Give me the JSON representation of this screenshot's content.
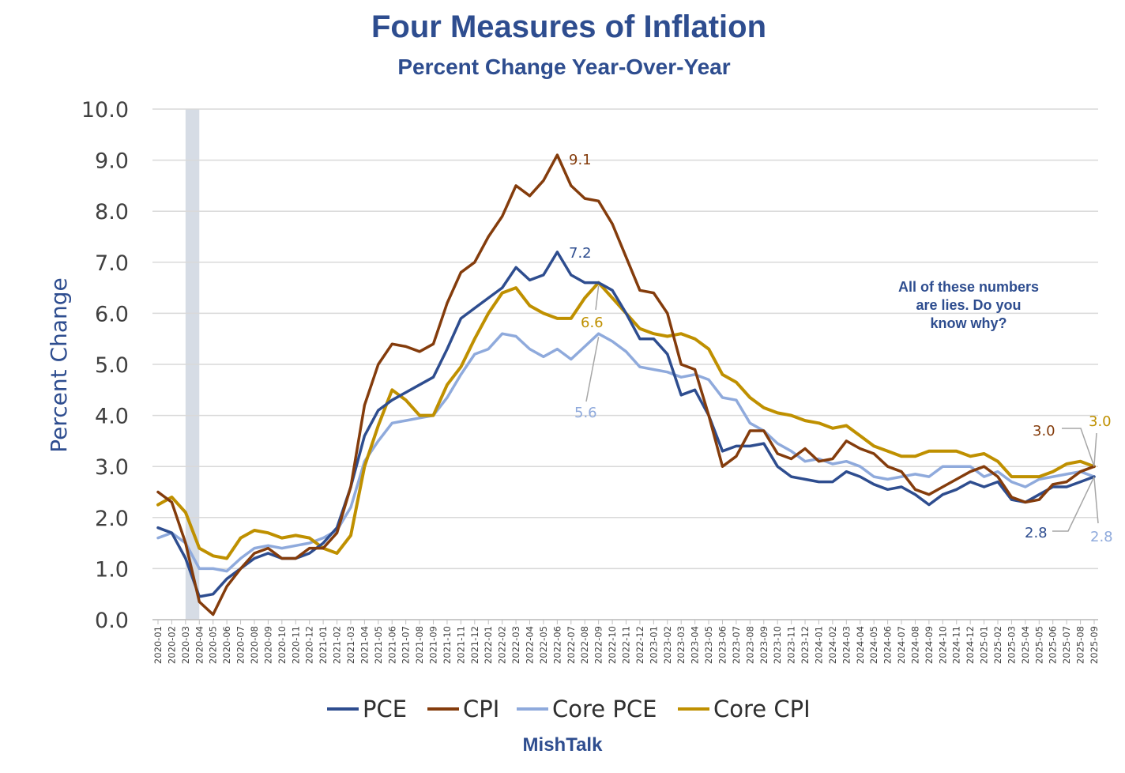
{
  "chart_data": {
    "type": "line",
    "title": "Four Measures of Inflation",
    "subtitle": "Percent Change Year-Over-Year",
    "ylabel": "Percent Change",
    "xlabel": "",
    "ylim": [
      0,
      10
    ],
    "yticks": [
      "0.0",
      "1.0",
      "2.0",
      "3.0",
      "4.0",
      "5.0",
      "6.0",
      "7.0",
      "8.0",
      "9.0",
      "10.0"
    ],
    "grid": "horizontal",
    "legend_position": "bottom",
    "recession_shading": [
      "2020-03",
      "2020-04"
    ],
    "x": [
      "2020-01",
      "2020-02",
      "2020-03",
      "2020-04",
      "2020-05",
      "2020-06",
      "2020-07",
      "2020-08",
      "2020-09",
      "2020-10",
      "2020-11",
      "2020-12",
      "2021-01",
      "2021-02",
      "2021-03",
      "2021-04",
      "2021-05",
      "2021-06",
      "2021-07",
      "2021-08",
      "2021-09",
      "2021-10",
      "2021-11",
      "2021-12",
      "2022-01",
      "2022-02",
      "2022-03",
      "2022-04",
      "2022-05",
      "2022-06",
      "2022-07",
      "2022-08",
      "2022-09",
      "2022-10",
      "2022-11",
      "2022-12",
      "2023-01",
      "2023-02",
      "2023-03",
      "2023-04",
      "2023-05",
      "2023-06",
      "2023-07",
      "2023-08",
      "2023-09",
      "2023-10",
      "2023-11",
      "2023-12",
      "2024-01",
      "2024-02",
      "2024-03",
      "2024-04",
      "2024-05",
      "2024-06",
      "2024-07",
      "2024-08",
      "2024-09",
      "2024-10",
      "2024-11",
      "2024-12",
      "2025-01",
      "2025-02",
      "2025-03",
      "2025-04",
      "2025-05",
      "2025-06",
      "2025-07",
      "2025-08",
      "2025-09"
    ],
    "series": [
      {
        "name": "PCE",
        "color": "#2e4d8f",
        "values": [
          1.8,
          1.7,
          1.2,
          0.45,
          0.5,
          0.8,
          1.0,
          1.2,
          1.3,
          1.2,
          1.2,
          1.3,
          1.5,
          1.8,
          2.6,
          3.6,
          4.1,
          4.3,
          4.45,
          4.6,
          4.75,
          5.3,
          5.9,
          6.1,
          6.3,
          6.5,
          6.9,
          6.65,
          6.75,
          7.2,
          6.75,
          6.6,
          6.6,
          6.45,
          6.0,
          5.5,
          5.5,
          5.2,
          4.4,
          4.5,
          4.0,
          3.3,
          3.4,
          3.4,
          3.45,
          3.0,
          2.8,
          2.75,
          2.7,
          2.7,
          2.9,
          2.8,
          2.65,
          2.55,
          2.6,
          2.45,
          2.25,
          2.45,
          2.55,
          2.7,
          2.6,
          2.7,
          2.35,
          2.3,
          2.45,
          2.6,
          2.6,
          2.7,
          2.8
        ]
      },
      {
        "name": "CPI",
        "color": "#843c0c",
        "values": [
          2.5,
          2.3,
          1.5,
          0.35,
          0.1,
          0.65,
          1.0,
          1.3,
          1.4,
          1.2,
          1.2,
          1.4,
          1.4,
          1.7,
          2.6,
          4.2,
          5.0,
          5.4,
          5.35,
          5.25,
          5.4,
          6.2,
          6.8,
          7.0,
          7.5,
          7.9,
          8.5,
          8.3,
          8.6,
          9.1,
          8.5,
          8.25,
          8.2,
          7.75,
          7.1,
          6.45,
          6.4,
          6.0,
          5.0,
          4.9,
          4.0,
          3.0,
          3.2,
          3.7,
          3.7,
          3.25,
          3.15,
          3.35,
          3.1,
          3.15,
          3.5,
          3.35,
          3.25,
          3.0,
          2.9,
          2.55,
          2.45,
          2.6,
          2.75,
          2.9,
          3.0,
          2.8,
          2.4,
          2.3,
          2.35,
          2.65,
          2.7,
          2.9,
          3.0
        ]
      },
      {
        "name": "Core PCE",
        "color": "#8faadc",
        "values": [
          1.6,
          1.7,
          1.5,
          1.0,
          1.0,
          0.95,
          1.2,
          1.4,
          1.45,
          1.4,
          1.45,
          1.5,
          1.6,
          1.75,
          2.2,
          3.1,
          3.5,
          3.85,
          3.9,
          3.95,
          4.0,
          4.35,
          4.8,
          5.2,
          5.3,
          5.6,
          5.55,
          5.3,
          5.15,
          5.3,
          5.1,
          5.35,
          5.6,
          5.45,
          5.25,
          4.95,
          4.9,
          4.85,
          4.75,
          4.8,
          4.7,
          4.35,
          4.3,
          3.85,
          3.7,
          3.45,
          3.3,
          3.1,
          3.15,
          3.05,
          3.1,
          3.0,
          2.8,
          2.75,
          2.8,
          2.85,
          2.8,
          3.0,
          3.0,
          3.0,
          2.8,
          2.9,
          2.7,
          2.6,
          2.75,
          2.8,
          2.85,
          2.9,
          2.8
        ]
      },
      {
        "name": "Core CPI",
        "color": "#bf9000",
        "values": [
          2.25,
          2.4,
          2.1,
          1.4,
          1.25,
          1.2,
          1.6,
          1.75,
          1.7,
          1.6,
          1.65,
          1.6,
          1.4,
          1.3,
          1.65,
          3.0,
          3.8,
          4.5,
          4.3,
          4.0,
          4.0,
          4.6,
          4.95,
          5.5,
          6.0,
          6.4,
          6.5,
          6.15,
          6.0,
          5.9,
          5.9,
          6.3,
          6.6,
          6.3,
          6.0,
          5.7,
          5.6,
          5.55,
          5.6,
          5.5,
          5.3,
          4.8,
          4.65,
          4.35,
          4.15,
          4.05,
          4.0,
          3.9,
          3.85,
          3.75,
          3.8,
          3.6,
          3.4,
          3.3,
          3.2,
          3.2,
          3.3,
          3.3,
          3.3,
          3.2,
          3.25,
          3.1,
          2.8,
          2.8,
          2.8,
          2.9,
          3.05,
          3.1,
          3.0
        ]
      }
    ],
    "annotations": [
      "9.1",
      "7.2",
      "6.6",
      "5.6",
      "3.0",
      "3.0",
      "2.8",
      "2.8"
    ]
  },
  "legend": {
    "pce": "PCE",
    "cpi": "CPI",
    "core_pce": "Core PCE",
    "core_cpi": "Core CPI"
  },
  "note": {
    "line1": "All of these numbers",
    "line2": "are lies. Do you",
    "line3": "know why?"
  },
  "footer": "MishTalk"
}
